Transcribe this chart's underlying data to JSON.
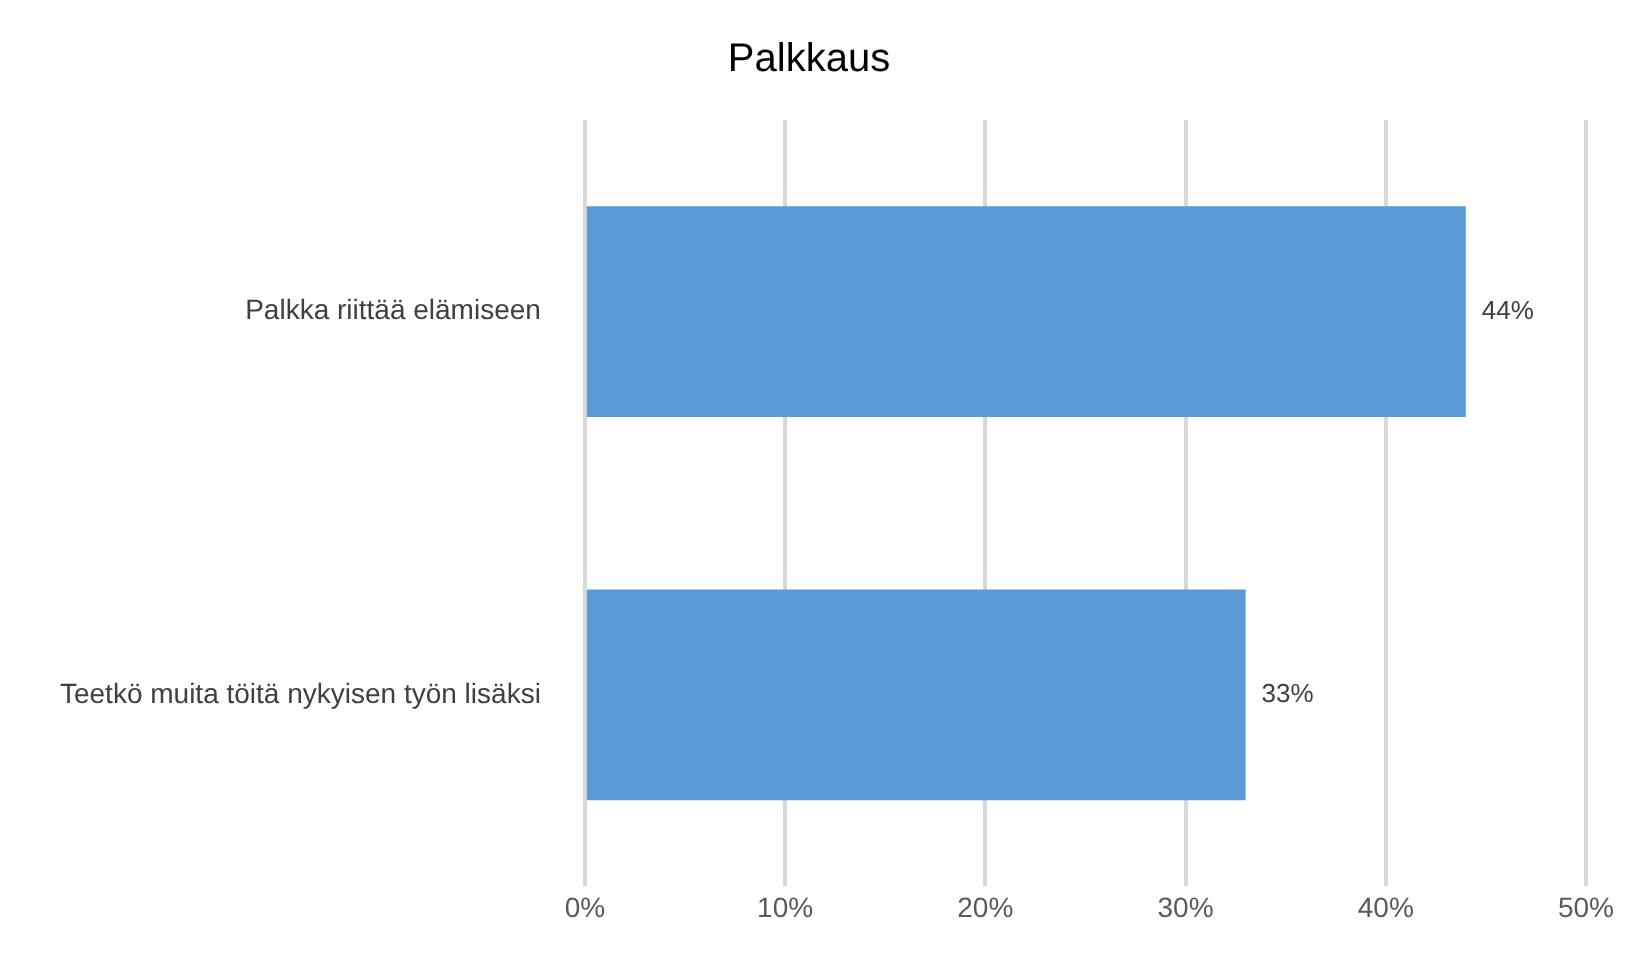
{
  "chart_data": {
    "type": "bar",
    "orientation": "horizontal",
    "title": "Palkkaus",
    "categories": [
      "Palkka riittää elämiseen",
      "Teetkö muita töitä nykyisen työn lisäksi"
    ],
    "values": [
      44,
      33
    ],
    "value_labels": [
      "44%",
      "33%"
    ],
    "color": "#5b9bd5",
    "xlim": [
      0,
      50
    ],
    "xticks": [
      {
        "value": 0,
        "label": "0%"
      },
      {
        "value": 10,
        "label": "10%"
      },
      {
        "value": 20,
        "label": "20%"
      },
      {
        "value": 30,
        "label": "30%"
      },
      {
        "value": 40,
        "label": "40%"
      },
      {
        "value": 50,
        "label": "50%"
      }
    ],
    "grid": "x",
    "legend": false
  }
}
